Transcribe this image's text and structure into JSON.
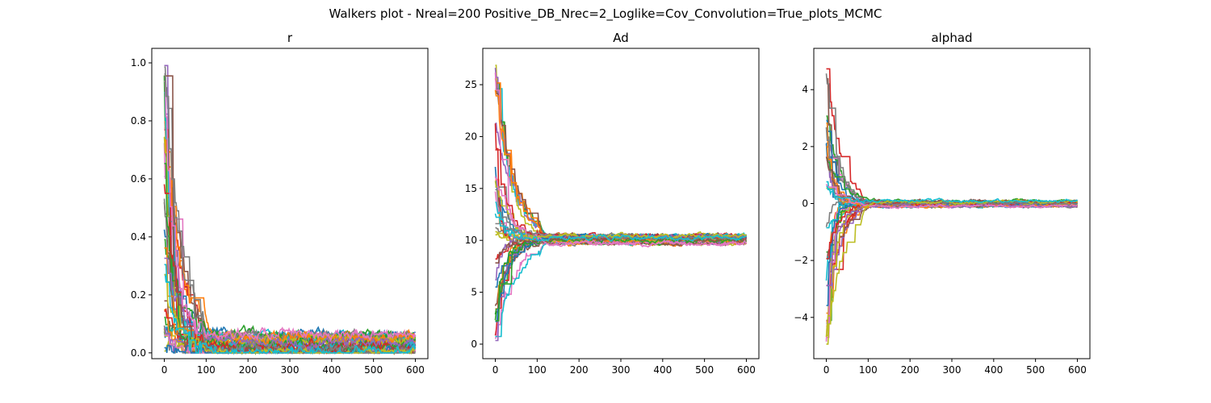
{
  "figure": {
    "suptitle": "Walkers plot - Nreal=200 Positive_DB_Nrec=2_Loglike=Cov_Convolution=True_plots_MCMC"
  },
  "palette": [
    "#1f77b4",
    "#ff7f0e",
    "#2ca02c",
    "#d62728",
    "#9467bd",
    "#8c564b",
    "#e377c2",
    "#7f7f7f",
    "#bcbd22",
    "#17becf"
  ],
  "chart_data": [
    {
      "type": "line",
      "title": "r",
      "xlabel": "",
      "ylabel": "",
      "xlim": [
        -30,
        630
      ],
      "ylim": [
        -0.02,
        1.05
      ],
      "xticks": [
        0,
        100,
        200,
        300,
        400,
        500,
        600
      ],
      "yticks": [
        0.0,
        0.2,
        0.4,
        0.6,
        0.8,
        1.0
      ],
      "ytick_labels": [
        "0.0",
        "0.2",
        "0.4",
        "0.6",
        "0.8",
        "1.0"
      ],
      "grid": false,
      "n_steps": 600,
      "walker_model": {
        "start_range": [
          0.0,
          1.0
        ],
        "burn_in_end": 80,
        "converged_center": 0.03,
        "converged_spread": 0.035
      }
    },
    {
      "type": "line",
      "title": "Ad",
      "xlabel": "",
      "ylabel": "",
      "xlim": [
        -30,
        630
      ],
      "ylim": [
        -1.4,
        28.5
      ],
      "xticks": [
        0,
        100,
        200,
        300,
        400,
        500,
        600
      ],
      "yticks": [
        0,
        5,
        10,
        15,
        20,
        25
      ],
      "ytick_labels": [
        "0",
        "5",
        "10",
        "15",
        "20",
        "25"
      ],
      "grid": false,
      "n_steps": 600,
      "walker_model": {
        "start_range": [
          0.0,
          27.2
        ],
        "burn_in_end": 90,
        "converged_center": 10.1,
        "converged_spread": 0.4
      }
    },
    {
      "type": "line",
      "title": "alphad",
      "xlabel": "",
      "ylabel": "",
      "xlim": [
        -30,
        630
      ],
      "ylim": [
        -5.45,
        5.45
      ],
      "xticks": [
        0,
        100,
        200,
        300,
        400,
        500,
        600
      ],
      "yticks": [
        -4,
        -2,
        0,
        2,
        4
      ],
      "ytick_labels": [
        "−4",
        "−2",
        "0",
        "2",
        "4"
      ],
      "grid": false,
      "n_steps": 600,
      "walker_model": {
        "start_range": [
          -5.0,
          5.0
        ],
        "burn_in_end": 70,
        "converged_center": 0.0,
        "converged_spread": 0.1
      }
    }
  ]
}
